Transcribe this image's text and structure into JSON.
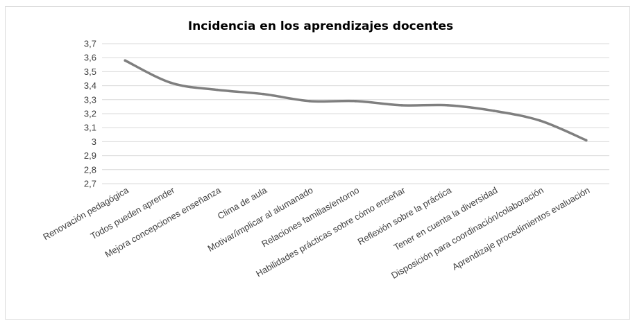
{
  "chart_data": {
    "type": "line",
    "title": "Incidencia en los aprendizajes docentes",
    "xlabel": "",
    "ylabel": "",
    "ylim": [
      2.7,
      3.7
    ],
    "yticks": [
      "3,7",
      "3,6",
      "3,5",
      "3,4",
      "3,3",
      "3,2",
      "3,1",
      "3",
      "2,9",
      "2,8",
      "2,7"
    ],
    "categories": [
      "Renovación pedagógica",
      "Todos pueden aprender",
      "Mejora concepciones enseñanza",
      "Clima de aula",
      "Motivar/implicar al alumanado",
      "Relaciones familias/entorno",
      "Habilidades prácticas sobre cómo enseñar",
      "Reflexión sobre la práctica",
      "Tener en cuenta la diversidad",
      "Disposición para coordinación/colaboración",
      "Aprendizaje procedimientos evaluación"
    ],
    "values": [
      3.58,
      3.42,
      3.37,
      3.34,
      3.29,
      3.29,
      3.26,
      3.26,
      3.22,
      3.15,
      3.01
    ],
    "grid": true,
    "legend": "none",
    "line_color": "#7f7f7f",
    "grid_color": "#d9d9d9"
  }
}
